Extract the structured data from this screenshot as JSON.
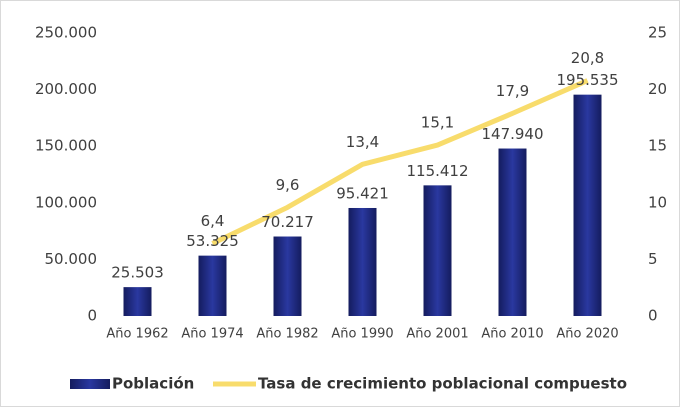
{
  "chart_data": {
    "type": "bar",
    "categories": [
      "Año 1962",
      "Año 1974",
      "Año 1982",
      "Año 1990",
      "Año 2001",
      "Año 2010",
      "Año 2020"
    ],
    "series": [
      {
        "name": "Población",
        "type": "bar",
        "color": "#1f2b85",
        "values": [
          25503,
          53325,
          70217,
          95421,
          115412,
          147940,
          195535
        ],
        "value_labels": [
          "25.503",
          "53.325",
          "70.217",
          "95.421",
          "115.412",
          "147.940",
          "195.535"
        ]
      },
      {
        "name": "Tasa de crecimiento poblacional compuesto",
        "type": "line",
        "axis": "y2",
        "color": "#f8dc6c",
        "values": [
          null,
          6.4,
          9.6,
          13.4,
          15.1,
          17.9,
          20.8
        ],
        "value_labels": [
          null,
          "6,4",
          "9,6",
          "13,4",
          "15,1",
          "17,9",
          "20,8"
        ]
      }
    ],
    "ylim": [
      0,
      250000
    ],
    "yticks": [
      0,
      {
        "value": 50000,
        "label": "50.000"
      },
      {
        "value": 100000,
        "label": "100.000"
      },
      {
        "value": 150000,
        "label": "150.000"
      },
      {
        "value": 200000,
        "label": "200.000"
      },
      {
        "value": 250000,
        "label": "250.000"
      }
    ],
    "y2lim": [
      0,
      25
    ],
    "y2ticks": [
      0,
      5,
      10,
      15,
      20,
      25
    ],
    "legend": "bottom"
  }
}
